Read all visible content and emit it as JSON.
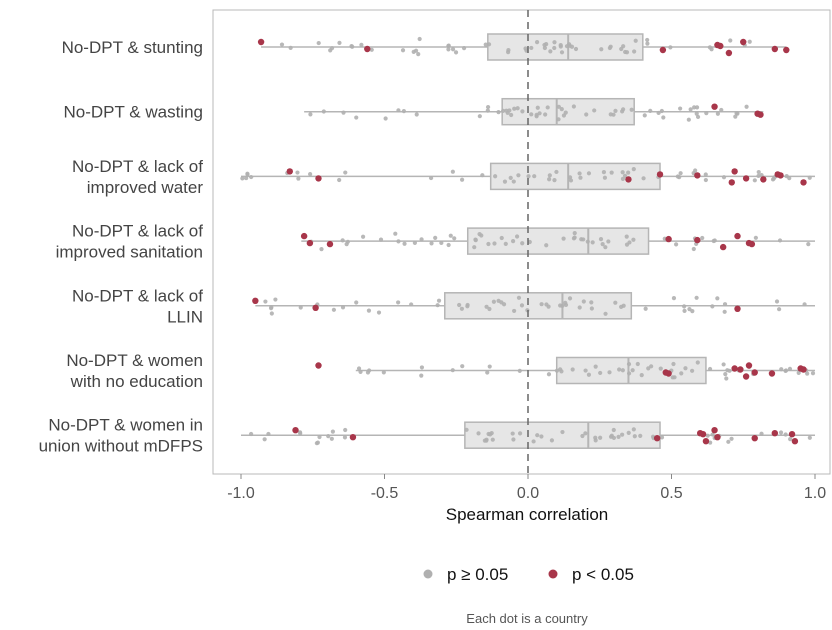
{
  "chart_data": {
    "type": "boxplot",
    "orientation": "horizontal",
    "xlabel": "Spearman correlation",
    "xlim": [
      -1.0,
      1.0
    ],
    "xticks": [
      "-1.0",
      "-0.5",
      "0.0",
      "0.5",
      "1.0"
    ],
    "reference_line": 0.0,
    "grid": false,
    "caption": "Each dot is a country",
    "legend": {
      "placement": "bottom",
      "items": [
        {
          "label": "p ≥ 0.05",
          "color": "#b0b0b0"
        },
        {
          "label": "p < 0.05",
          "color": "#a8364a"
        }
      ]
    },
    "categories": [
      {
        "label": [
          "No-DPT & stunting"
        ],
        "box": {
          "min": -0.93,
          "q1": -0.14,
          "median": 0.14,
          "q3": 0.4,
          "max": 0.9
        },
        "significant": [
          -0.93,
          -0.56,
          0.47,
          0.66,
          0.67,
          0.7,
          0.75,
          0.86,
          0.9
        ]
      },
      {
        "label": [
          "No-DPT & wasting"
        ],
        "box": {
          "min": -0.78,
          "q1": -0.09,
          "median": 0.1,
          "q3": 0.37,
          "max": 0.82
        },
        "significant": [
          0.65,
          0.8,
          0.81
        ]
      },
      {
        "label": [
          "No-DPT & lack of",
          "improved water"
        ],
        "box": {
          "min": -1.0,
          "q1": -0.13,
          "median": 0.14,
          "q3": 0.46,
          "max": 1.0
        },
        "significant": [
          -0.83,
          -0.73,
          0.35,
          0.46,
          0.59,
          0.71,
          0.72,
          0.76,
          0.82,
          0.87,
          0.88,
          0.96
        ]
      },
      {
        "label": [
          "No-DPT & lack of",
          "improved sanitation"
        ],
        "box": {
          "min": -0.79,
          "q1": -0.21,
          "median": 0.21,
          "q3": 0.42,
          "max": 1.0
        },
        "significant": [
          -0.78,
          -0.76,
          -0.69,
          0.49,
          0.59,
          0.68,
          0.73,
          0.77,
          0.78
        ]
      },
      {
        "label": [
          "No-DPT & lack of",
          "LLIN"
        ],
        "box": {
          "min": -0.95,
          "q1": -0.29,
          "median": 0.12,
          "q3": 0.36,
          "max": 1.0
        },
        "significant": [
          -0.95,
          -0.74,
          0.73
        ]
      },
      {
        "label": [
          "No-DPT & women",
          "with no education"
        ],
        "box": {
          "min": -0.6,
          "q1": 0.1,
          "median": 0.35,
          "q3": 0.62,
          "max": 1.0
        },
        "significant": [
          -0.73,
          0.48,
          0.49,
          0.72,
          0.74,
          0.76,
          0.77,
          0.79,
          0.85,
          0.95,
          0.96
        ]
      },
      {
        "label": [
          "No-DPT & women in",
          "union without mDFPS"
        ],
        "box": {
          "min": -1.0,
          "q1": -0.22,
          "median": 0.21,
          "q3": 0.46,
          "max": 1.0
        },
        "significant": [
          -0.81,
          -0.61,
          0.45,
          0.6,
          0.61,
          0.62,
          0.65,
          0.66,
          0.79,
          0.86,
          0.92,
          0.93
        ]
      }
    ]
  }
}
